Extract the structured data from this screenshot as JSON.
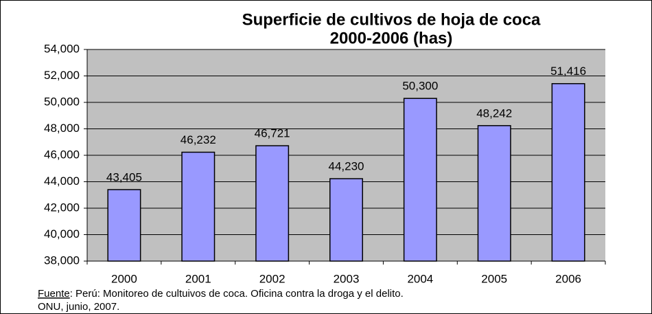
{
  "chart_data": {
    "type": "bar",
    "title": [
      "Superficie de cultivos de hoja de coca",
      "2000-2006 (has)"
    ],
    "categories": [
      "2000",
      "2001",
      "2002",
      "2003",
      "2004",
      "2005",
      "2006"
    ],
    "values": [
      43405,
      46232,
      46721,
      44230,
      50300,
      48242,
      51416
    ],
    "value_labels": [
      "43,405",
      "46,232",
      "46,721",
      "44,230",
      "50,300",
      "48,242",
      "51,416"
    ],
    "color": "#9999ff",
    "ylim": [
      38000,
      54000
    ],
    "yticks": [
      {
        "value": 38000,
        "label": "38,000"
      },
      {
        "value": 40000,
        "label": "40,000"
      },
      {
        "value": 42000,
        "label": "42,000"
      },
      {
        "value": 44000,
        "label": "44,000"
      },
      {
        "value": 46000,
        "label": "46,000"
      },
      {
        "value": 48000,
        "label": "48,000"
      },
      {
        "value": 50000,
        "label": "50,000"
      },
      {
        "value": 52000,
        "label": "52,000"
      },
      {
        "value": 54000,
        "label": "54,000"
      }
    ],
    "grid": true,
    "source": {
      "label": "Fuente",
      "text": ": Perú: Monitoreo de cultuivos de coca. Oficina contra la droga y el delito.",
      "line2": "ONU, junio, 2007."
    }
  }
}
